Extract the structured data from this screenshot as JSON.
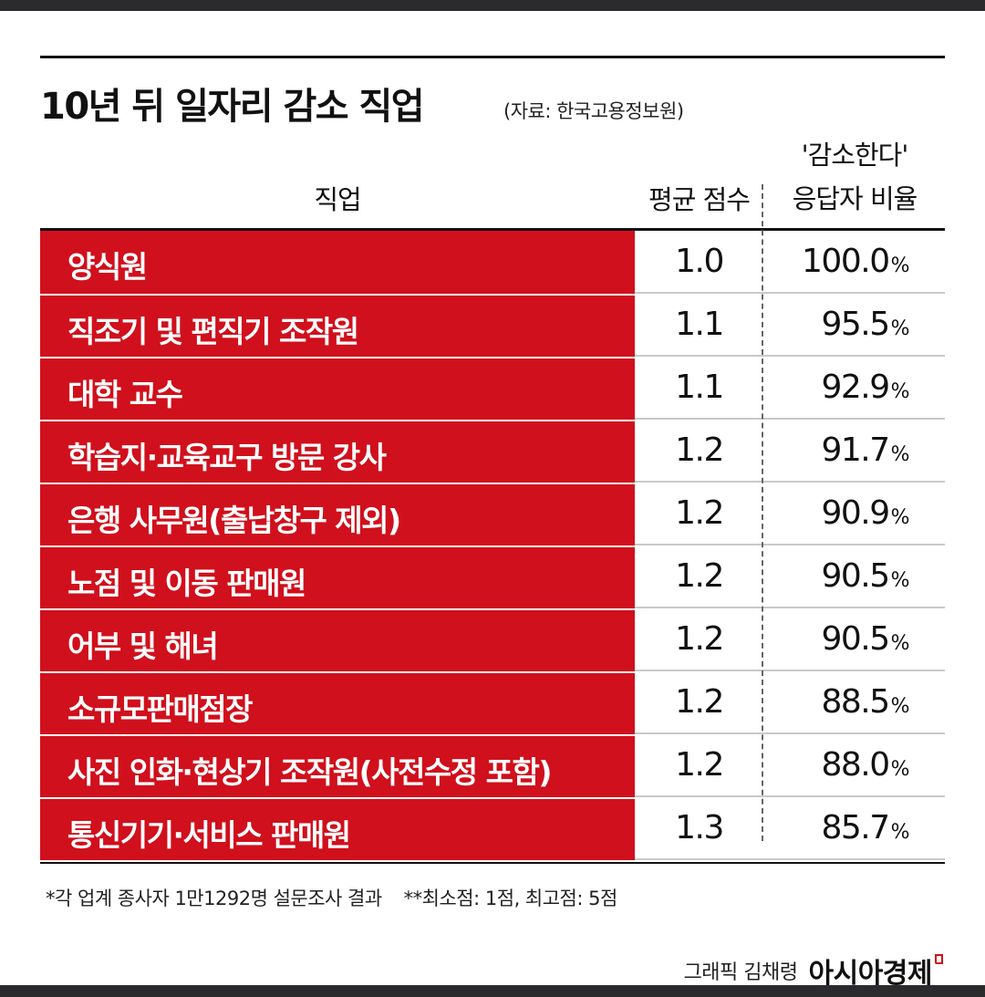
{
  "header": {
    "title": "10년 뒤 일자리 감소 직업",
    "source": "(자료: 한국고용정보원)"
  },
  "columns": {
    "job": "직업",
    "avg": "평균 점수",
    "ratio_line1": "'감소한다'",
    "ratio_line2": "응답자 비율"
  },
  "rows": [
    {
      "job": "양식원",
      "avg": "1.0",
      "ratio": "100.0"
    },
    {
      "job": "직조기 및 편직기 조작원",
      "avg": "1.1",
      "ratio": "95.5"
    },
    {
      "job": "대학 교수",
      "avg": "1.1",
      "ratio": "92.9"
    },
    {
      "job": "학습지·교육교구 방문 강사",
      "avg": "1.2",
      "ratio": "91.7"
    },
    {
      "job": "은행 사무원(출납창구 제외)",
      "avg": "1.2",
      "ratio": "90.9"
    },
    {
      "job": "노점 및 이동 판매원",
      "avg": "1.2",
      "ratio": "90.5"
    },
    {
      "job": "어부 및 해녀",
      "avg": "1.2",
      "ratio": "90.5"
    },
    {
      "job": "소규모판매점장",
      "avg": "1.2",
      "ratio": "88.5"
    },
    {
      "job": "사진 인화·현상기 조작원(사전수정 포함)",
      "avg": "1.2",
      "ratio": "88.0"
    },
    {
      "job": "통신기기·서비스 판매원",
      "avg": "1.3",
      "ratio": "85.7"
    }
  ],
  "percent_sign": "%",
  "footnotes": {
    "note1": "*각 업계 종사자 1만1292명 설문조사 결과",
    "note2": "**최소점: 1점, 최고점: 5점"
  },
  "credit": {
    "artist": "그래픽 김채령",
    "brand": "아시아경제"
  },
  "colors": {
    "accent": "#d0101c",
    "text": "#111111"
  },
  "chart_data": {
    "type": "table",
    "title": "10년 뒤 일자리 감소 직업",
    "columns": [
      "직업",
      "평균 점수",
      "'감소한다' 응답자 비율"
    ],
    "categories": [
      "양식원",
      "직조기 및 편직기 조작원",
      "대학 교수",
      "학습지·교육교구 방문 강사",
      "은행 사무원(출납창구 제외)",
      "노점 및 이동 판매원",
      "어부 및 해녀",
      "소규모판매점장",
      "사진 인화·현상기 조작원(사전수정 포함)",
      "통신기기·서비스 판매원"
    ],
    "series": [
      {
        "name": "평균 점수",
        "values": [
          1.0,
          1.1,
          1.1,
          1.2,
          1.2,
          1.2,
          1.2,
          1.2,
          1.2,
          1.3
        ]
      },
      {
        "name": "'감소한다' 응답자 비율",
        "values": [
          100.0,
          95.5,
          92.9,
          91.7,
          90.9,
          90.5,
          90.5,
          88.5,
          88.0,
          85.7
        ]
      }
    ]
  }
}
